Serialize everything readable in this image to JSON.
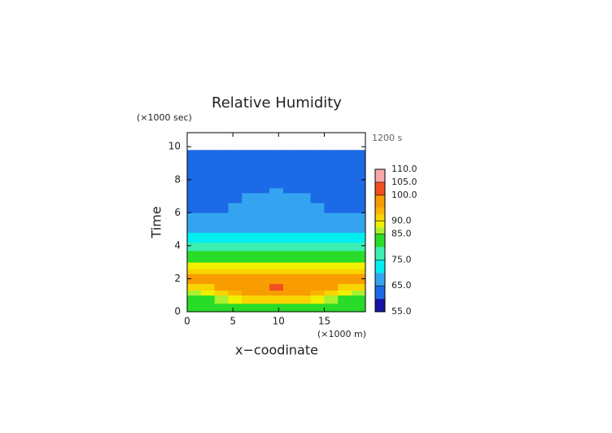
{
  "chart_data": {
    "type": "contour",
    "title": "Relative Humidity",
    "y_unit": "(×1000 sec)",
    "x_unit": "(×1000 m)",
    "time_label": "1200 s",
    "xlabel": "x−coodinate",
    "ylabel": "Time",
    "xlim": [
      0,
      19.5
    ],
    "ylim": [
      0,
      10.85
    ],
    "xticks": [
      0,
      5,
      10,
      15
    ],
    "yticks": [
      0,
      2,
      4,
      6,
      8,
      10
    ],
    "x": [
      0,
      1.5,
      3,
      4.5,
      6,
      7.5,
      9,
      10.5,
      12,
      13.5,
      15,
      16.5,
      18,
      19.5
    ],
    "y": [
      0,
      0.5,
      1.0,
      1.3,
      1.7,
      2.0,
      2.3,
      2.6,
      3.0,
      3.7,
      4.2,
      4.8,
      5.4,
      6.0,
      6.6,
      7.2,
      7.5,
      9.8
    ],
    "z": [
      [
        82,
        82,
        82,
        82,
        83,
        84,
        84,
        84,
        83,
        82,
        82,
        82,
        82
      ],
      [
        82,
        83,
        86,
        88,
        90,
        91,
        91,
        91,
        90,
        88,
        86,
        83,
        82
      ],
      [
        86,
        88,
        91,
        93,
        95,
        96,
        97,
        96,
        95,
        93,
        91,
        88,
        86
      ],
      [
        91,
        92,
        95,
        96,
        97,
        98,
        101,
        98,
        97,
        96,
        95,
        92,
        91
      ],
      [
        95,
        96,
        96,
        97,
        97,
        97,
        97,
        97,
        97,
        97,
        96,
        96,
        95
      ],
      [
        96,
        96,
        96,
        96,
        96,
        96,
        96,
        96,
        96,
        96,
        96,
        96,
        96
      ],
      [
        92,
        92,
        92,
        92,
        92,
        92,
        92,
        92,
        92,
        92,
        92,
        92,
        92
      ],
      [
        88,
        88,
        88,
        88,
        88,
        88,
        88,
        88,
        88,
        88,
        88,
        88,
        88
      ],
      [
        83,
        83,
        83,
        83,
        83,
        83,
        83,
        83,
        83,
        83,
        83,
        83,
        83
      ],
      [
        77,
        77,
        77,
        77,
        77,
        77,
        77,
        77,
        77,
        77,
        77,
        77,
        77
      ],
      [
        72,
        72,
        72,
        72,
        72,
        72,
        72,
        72,
        72,
        72,
        72,
        72,
        72
      ],
      [
        67,
        67,
        67,
        67,
        67,
        67,
        67,
        67,
        67,
        67,
        67,
        67,
        67
      ],
      [
        67,
        67,
        67,
        67,
        67,
        67,
        67,
        67,
        67,
        67,
        67,
        67,
        67
      ],
      [
        63,
        63,
        63,
        67,
        67,
        67,
        67,
        67,
        67,
        67,
        63,
        63,
        63
      ],
      [
        63,
        63,
        63,
        63,
        66,
        67,
        67,
        67,
        66,
        63,
        63,
        63,
        63
      ],
      [
        63,
        63,
        63,
        63,
        63,
        63,
        66,
        63,
        63,
        63,
        63,
        63,
        63
      ],
      [
        63,
        63,
        63,
        63,
        63,
        63,
        63,
        63,
        63,
        63,
        63,
        63,
        63
      ]
    ],
    "levels": [
      55,
      60,
      65,
      70,
      75,
      80,
      85,
      87.5,
      90,
      92.5,
      95,
      100,
      105,
      110
    ],
    "colors": [
      "#1414a0",
      "#1c6ae6",
      "#34a4f0",
      "#00eef0",
      "#3cf0b4",
      "#28dc28",
      "#a8f030",
      "#f0f000",
      "#f8d400",
      "#f8b400",
      "#f89c00",
      "#f05020",
      "#f8a8a8"
    ],
    "cbticks": [
      {
        "value": 55,
        "label": "55.0"
      },
      {
        "value": 65,
        "label": "65.0"
      },
      {
        "value": 75,
        "label": "75.0"
      },
      {
        "value": 85,
        "label": "85.0"
      },
      {
        "value": 90,
        "label": "90.0"
      },
      {
        "value": 100,
        "label": "100.0"
      },
      {
        "value": 105,
        "label": "105.0"
      },
      {
        "value": 110,
        "label": "110.0"
      }
    ]
  }
}
